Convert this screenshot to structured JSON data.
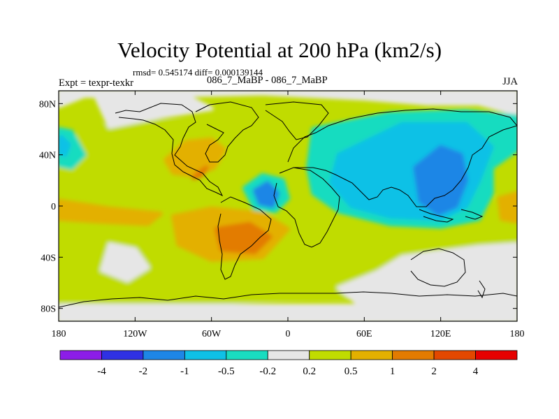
{
  "labels": {
    "title": "Velocity Potential at 200 hPa (km2/s)",
    "stats": "rmsd= 0.545174 diff= 0.000139144",
    "left": "Expt = texpr-texkr",
    "center": "086_7_MaBP - 086_7_MaBP",
    "right": "JJA"
  },
  "chart_data": {
    "type": "heatmap",
    "title": "Velocity Potential at 200 hPa (km2/s)",
    "projection": "cylindrical equidistant",
    "x_ticks": [
      {
        "value": -180,
        "label": "180"
      },
      {
        "value": -120,
        "label": "120W"
      },
      {
        "value": -60,
        "label": "60W"
      },
      {
        "value": 0,
        "label": "0"
      },
      {
        "value": 60,
        "label": "60E"
      },
      {
        "value": 120,
        "label": "120E"
      },
      {
        "value": 180,
        "label": "180"
      }
    ],
    "y_ticks": [
      {
        "value": 80,
        "label": "80N"
      },
      {
        "value": 40,
        "label": "40N"
      },
      {
        "value": 0,
        "label": "0"
      },
      {
        "value": -40,
        "label": "40S"
      },
      {
        "value": -80,
        "label": "80S"
      }
    ],
    "xlim": [
      -180,
      180
    ],
    "ylim": [
      -90,
      90
    ],
    "colorbar": {
      "colors": [
        "#8c1de8",
        "#2f31e3",
        "#1e86e6",
        "#0fc1e6",
        "#19dcc0",
        "#e6e6e6",
        "#c0dc00",
        "#e3b000",
        "#e37b00",
        "#e34800",
        "#e60000"
      ],
      "tick_labels": [
        "-4",
        "-2",
        "-1",
        "-0.5",
        "-0.2",
        "0.2",
        "0.5",
        "1",
        "2",
        "4"
      ]
    },
    "field_regions": [
      {
        "level": "-0.2 to 0.2",
        "color": "#e6e6e6",
        "region": "Arctic Ocean and northern high latitudes",
        "points": [
          [
            -180,
            90
          ],
          [
            180,
            90
          ],
          [
            180,
            72
          ],
          [
            150,
            80
          ],
          [
            110,
            80
          ],
          [
            60,
            84
          ],
          [
            -20,
            88
          ],
          [
            -100,
            86
          ],
          [
            -160,
            86
          ],
          [
            -180,
            78
          ]
        ]
      },
      {
        "level": "0.2 to 0.5",
        "color": "#c0dc00",
        "region": "North Pacific / North America",
        "points": [
          [
            -180,
            48
          ],
          [
            -150,
            62
          ],
          [
            -100,
            66
          ],
          [
            -60,
            64
          ],
          [
            -30,
            50
          ],
          [
            -20,
            40
          ],
          [
            -40,
            32
          ],
          [
            -80,
            30
          ],
          [
            -110,
            24
          ],
          [
            -150,
            22
          ],
          [
            -180,
            28
          ]
        ]
      },
      {
        "level": "-0.5 to -0.2",
        "color": "#19dcc0",
        "region": "North Pacific high latitudes",
        "points": [
          [
            -180,
            32
          ],
          [
            -170,
            30
          ],
          [
            -160,
            40
          ],
          [
            -170,
            58
          ],
          [
            -180,
            60
          ]
        ]
      },
      {
        "level": "-1 to -0.5",
        "color": "#0fc1e6",
        "region": "Northwest edge",
        "points": [
          [
            -180,
            42
          ],
          [
            -175,
            40
          ],
          [
            -172,
            48
          ],
          [
            -178,
            54
          ],
          [
            -180,
            52
          ]
        ]
      },
      {
        "level": "0.5 to 1",
        "color": "#e3b000",
        "region": "Central America / Eastern Pacific",
        "points": [
          [
            -80,
            50
          ],
          [
            -60,
            52
          ],
          [
            -50,
            44
          ],
          [
            -58,
            30
          ],
          [
            -74,
            24
          ],
          [
            -90,
            26
          ],
          [
            -96,
            36
          ]
        ]
      },
      {
        "level": "1 to 2",
        "color": "#e37b00",
        "region": "Gulf of Mexico",
        "points": [
          [
            -70,
            26
          ],
          [
            -64,
            30
          ],
          [
            -68,
            24
          ],
          [
            -74,
            22
          ]
        ]
      },
      {
        "level": "-0.5 to -0.2",
        "color": "#19dcc0",
        "region": "Europe / Asia / Indian Ocean",
        "points": [
          [
            20,
            60
          ],
          [
            80,
            72
          ],
          [
            140,
            74
          ],
          [
            180,
            70
          ],
          [
            180,
            44
          ],
          [
            160,
            30
          ],
          [
            160,
            10
          ],
          [
            150,
            -10
          ],
          [
            120,
            -16
          ],
          [
            80,
            -14
          ],
          [
            40,
            -4
          ],
          [
            20,
            10
          ],
          [
            16,
            30
          ]
        ]
      },
      {
        "level": "-1 to -0.5",
        "color": "#0fc1e6",
        "region": "Eurasia / Maritime Continent",
        "points": [
          [
            40,
            40
          ],
          [
            90,
            64
          ],
          [
            140,
            64
          ],
          [
            160,
            46
          ],
          [
            150,
            20
          ],
          [
            140,
            0
          ],
          [
            120,
            -10
          ],
          [
            80,
            -8
          ],
          [
            50,
            0
          ],
          [
            34,
            18
          ]
        ]
      },
      {
        "level": "-2 to -1",
        "color": "#1e86e6",
        "region": "Tibetan Plateau / East Asia",
        "points": [
          [
            100,
            30
          ],
          [
            120,
            46
          ],
          [
            136,
            40
          ],
          [
            140,
            20
          ],
          [
            132,
            0
          ],
          [
            118,
            -6
          ],
          [
            104,
            4
          ]
        ]
      },
      {
        "level": "-0.5 to -0.2",
        "color": "#19dcc0",
        "region": "West Africa / Gulf of Guinea",
        "points": [
          [
            -34,
            14
          ],
          [
            -20,
            24
          ],
          [
            -4,
            20
          ],
          [
            0,
            6
          ],
          [
            -10,
            -4
          ],
          [
            -26,
            -2
          ]
        ]
      },
      {
        "level": "-2 to -1",
        "color": "#1e86e6",
        "region": "West Africa core",
        "points": [
          [
            -26,
            12
          ],
          [
            -16,
            18
          ],
          [
            -8,
            10
          ],
          [
            -12,
            0
          ],
          [
            -22,
            2
          ]
        ]
      },
      {
        "level": "0.5 to 1",
        "color": "#e3b000",
        "region": "South America / South Atlantic",
        "points": [
          [
            -90,
            -8
          ],
          [
            -60,
            -2
          ],
          [
            -20,
            -6
          ],
          [
            0,
            -18
          ],
          [
            -20,
            -40
          ],
          [
            -60,
            -42
          ],
          [
            -86,
            -30
          ]
        ]
      },
      {
        "level": "1 to 2",
        "color": "#e37b00",
        "region": "South Atlantic core",
        "points": [
          [
            -56,
            -18
          ],
          [
            -30,
            -14
          ],
          [
            -14,
            -24
          ],
          [
            -26,
            -36
          ],
          [
            -52,
            -34
          ]
        ]
      },
      {
        "level": "0.5 to 1",
        "color": "#e3b000",
        "region": "Equatorial Pacific",
        "points": [
          [
            -180,
            4
          ],
          [
            -140,
            -2
          ],
          [
            -100,
            -6
          ],
          [
            -110,
            -14
          ],
          [
            -150,
            -12
          ],
          [
            -180,
            -10
          ]
        ]
      },
      {
        "level": "0.2 to 0.5",
        "color": "#c0dc00",
        "region": "Southern midlatitudes",
        "points": [
          [
            -180,
            -22
          ],
          [
            -120,
            -30
          ],
          [
            -60,
            -48
          ],
          [
            0,
            -44
          ],
          [
            60,
            -30
          ],
          [
            120,
            -26
          ],
          [
            180,
            -22
          ],
          [
            180,
            -76
          ],
          [
            100,
            -74
          ],
          [
            20,
            -70
          ],
          [
            -60,
            -76
          ],
          [
            -180,
            -76
          ]
        ]
      },
      {
        "level": "-0.2 to 0.2",
        "color": "#e6e6e6",
        "region": "South Pacific / Antarctica",
        "points": [
          [
            -140,
            -30
          ],
          [
            -120,
            -34
          ],
          [
            -110,
            -48
          ],
          [
            -126,
            -58
          ],
          [
            -146,
            -50
          ]
        ]
      },
      {
        "level": "-0.2 to 0.2",
        "color": "#e6e6e6",
        "region": "Southern Ocean / Antarctica",
        "points": [
          [
            90,
            -40
          ],
          [
            150,
            -32
          ],
          [
            180,
            -30
          ],
          [
            180,
            -82
          ],
          [
            120,
            -84
          ],
          [
            60,
            -80
          ],
          [
            40,
            -64
          ],
          [
            70,
            -52
          ]
        ]
      },
      {
        "level": "0.5 to 1",
        "color": "#e3b000",
        "region": "Eastern Pacific edge",
        "points": [
          [
            166,
            6
          ],
          [
            180,
            10
          ],
          [
            180,
            -12
          ],
          [
            168,
            -10
          ]
        ]
      },
      {
        "level": "-0.2 to 0.2",
        "color": "#e6e6e6",
        "region": "Arctic Canada",
        "points": [
          [
            -140,
            62
          ],
          [
            -100,
            70
          ],
          [
            -60,
            76
          ],
          [
            -80,
            86
          ],
          [
            -150,
            84
          ]
        ]
      },
      {
        "level": "-0.2 to 0.2",
        "color": "#e6e6e6",
        "region": "Antarctica",
        "points": [
          [
            -180,
            -78
          ],
          [
            180,
            -78
          ],
          [
            180,
            -90
          ],
          [
            -180,
            -90
          ]
        ]
      }
    ]
  }
}
